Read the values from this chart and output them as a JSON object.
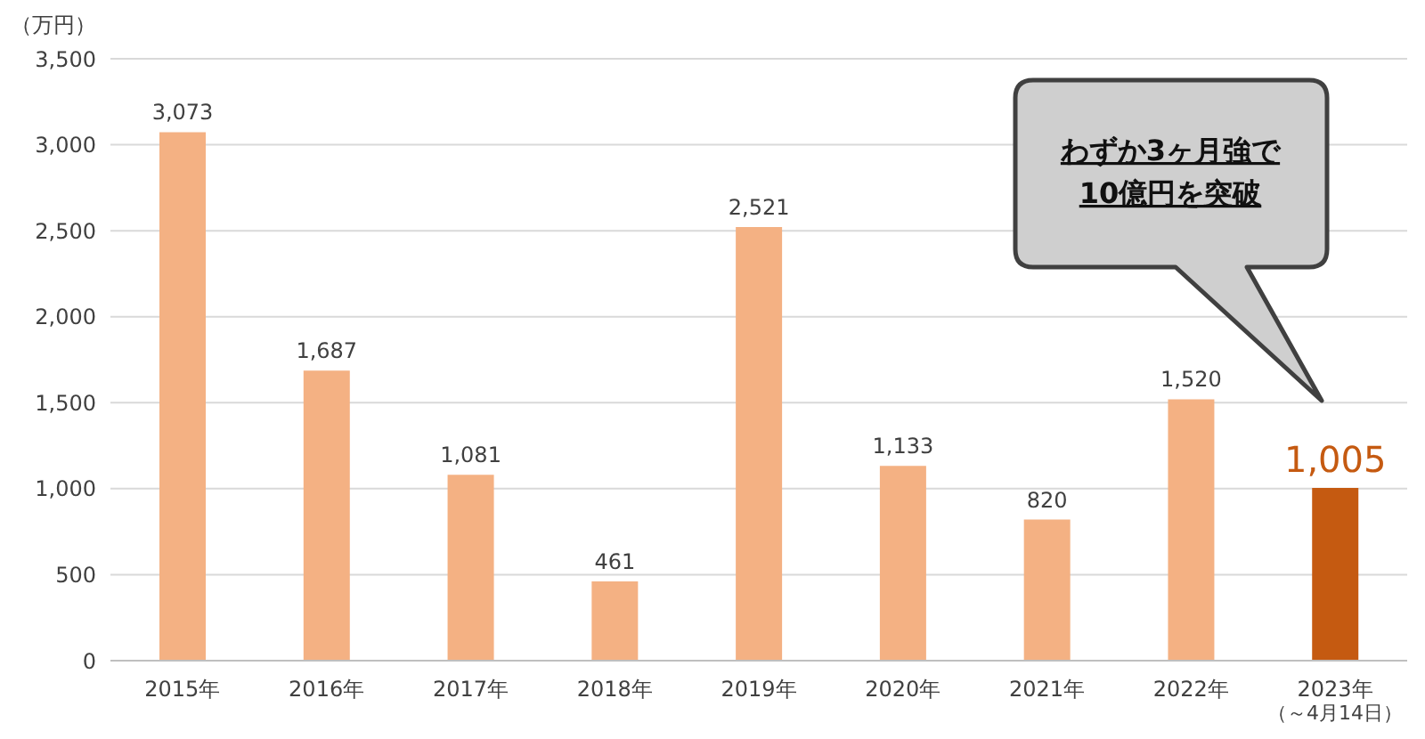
{
  "chart_data": {
    "type": "bar",
    "ylabel": "（万円）",
    "categories": [
      "2015年",
      "2016年",
      "2017年",
      "2018年",
      "2019年",
      "2020年",
      "2021年",
      "2022年",
      "2023年"
    ],
    "values": [
      3073,
      1687,
      1081,
      461,
      2521,
      1133,
      820,
      1520,
      1005
    ],
    "colors": [
      "#f4b183",
      "#f4b183",
      "#f4b183",
      "#f4b183",
      "#f4b183",
      "#f4b183",
      "#f4b183",
      "#f4b183",
      "#c55a11"
    ],
    "value_labels": [
      "3,073",
      "1,687",
      "1,081",
      "461",
      "2,521",
      "1,133",
      "820",
      "1,520",
      "1,005"
    ],
    "ylim": [
      0,
      3500
    ],
    "yticks": [
      {
        "value": 0,
        "label": "0"
      },
      {
        "value": 500,
        "label": "500"
      },
      {
        "value": 1000,
        "label": "1,000"
      },
      {
        "value": 1500,
        "label": "1,500"
      },
      {
        "value": 2000,
        "label": "2,000"
      },
      {
        "value": 2500,
        "label": "2,500"
      },
      {
        "value": 3000,
        "label": "3,000"
      },
      {
        "value": 3500,
        "label": "3,500"
      }
    ],
    "grid": "y",
    "legend": false,
    "annotations": [
      "わずか3ヶ月強で\n10億円を突破",
      "（～4月14日）"
    ]
  }
}
